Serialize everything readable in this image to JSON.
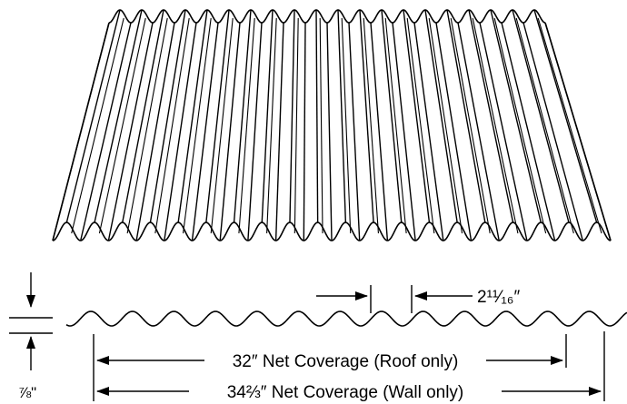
{
  "labels": {
    "pitch": "2¹¹⁄₁₆″",
    "roof_coverage": "32″ Net Coverage (Roof only)",
    "wall_coverage": "34⅔″ Net Coverage (Wall only)",
    "depth": "⅞\""
  }
}
